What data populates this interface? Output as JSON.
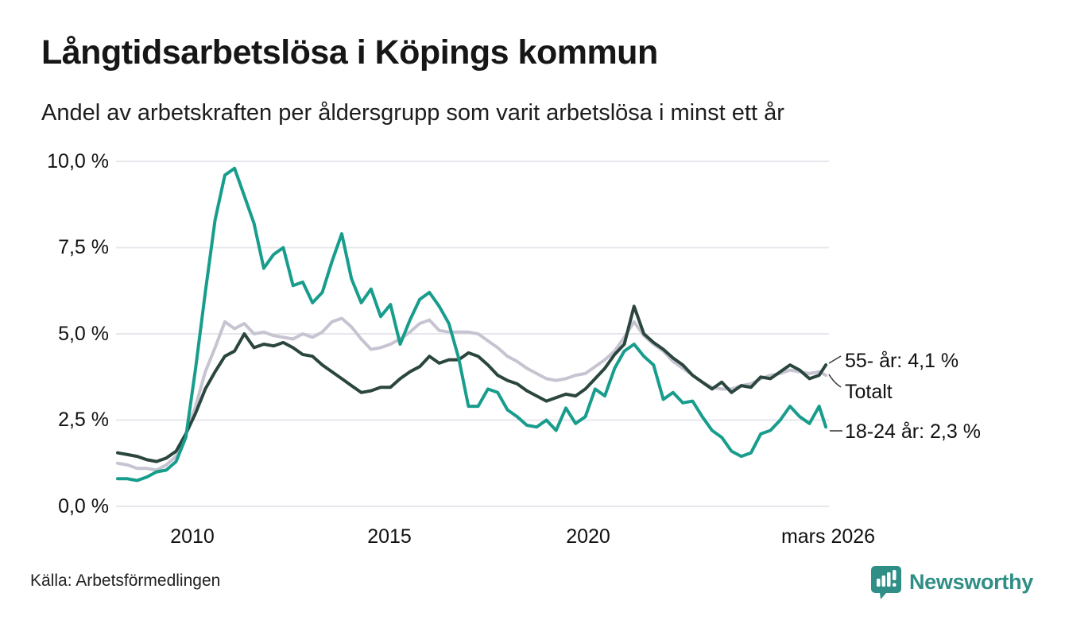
{
  "header": {
    "title": "Långtidsarbetslösa i Köpings kommun",
    "subtitle": "Andel av arbetskraften per åldersgrupp som varit arbetslösa i minst ett år"
  },
  "footer": {
    "source": "Källa: Arbetsförmedlingen",
    "logo_text": "Newsworthy",
    "brand_color": "#2f8e86"
  },
  "chart_data": {
    "type": "line",
    "title": "Långtidsarbetslösa i Köpings kommun",
    "subtitle": "Andel av arbetskraften per åldersgrupp som varit arbetslösa i minst ett år",
    "xlabel": "",
    "ylabel": "",
    "xlim": [
      2008,
      2026.25
    ],
    "ylim": [
      0,
      10
    ],
    "grid": "horizontal",
    "grid_color": "#e7e6ec",
    "legend_position": "right-end-labels",
    "yticks": [
      {
        "value": 10.0,
        "label": "10,0 %"
      },
      {
        "value": 7.5,
        "label": "7,5 %"
      },
      {
        "value": 5.0,
        "label": "5,0 %"
      },
      {
        "value": 2.5,
        "label": "2,5 %"
      },
      {
        "value": 0.0,
        "label": "0,0 %"
      }
    ],
    "xticks": [
      {
        "value": 2010,
        "label": "2010"
      },
      {
        "value": 2015,
        "label": "2015"
      },
      {
        "value": 2020,
        "label": "2020"
      },
      {
        "value": 2026.17,
        "label": "mars 2026"
      }
    ],
    "x": [
      2008.0,
      2008.25,
      2008.5,
      2008.75,
      2009.0,
      2009.25,
      2009.5,
      2009.75,
      2010.0,
      2010.25,
      2010.5,
      2010.75,
      2011.0,
      2011.25,
      2011.5,
      2011.75,
      2012.0,
      2012.25,
      2012.5,
      2012.75,
      2013.0,
      2013.25,
      2013.5,
      2013.75,
      2014.0,
      2014.25,
      2014.5,
      2014.75,
      2015.0,
      2015.25,
      2015.5,
      2015.75,
      2016.0,
      2016.25,
      2016.5,
      2016.75,
      2017.0,
      2017.25,
      2017.5,
      2017.75,
      2018.0,
      2018.25,
      2018.5,
      2018.75,
      2019.0,
      2019.25,
      2019.5,
      2019.75,
      2020.0,
      2020.25,
      2020.5,
      2020.75,
      2021.0,
      2021.25,
      2021.5,
      2021.75,
      2022.0,
      2022.25,
      2022.5,
      2022.75,
      2023.0,
      2023.25,
      2023.5,
      2023.75,
      2024.0,
      2024.25,
      2024.5,
      2024.75,
      2025.0,
      2025.25,
      2025.5,
      2025.75,
      2026.0,
      2026.17
    ],
    "series": [
      {
        "name": "Totalt",
        "color": "#c7c4d2",
        "end_label": "Totalt",
        "values": [
          1.25,
          1.2,
          1.1,
          1.1,
          1.05,
          1.2,
          1.45,
          2.1,
          2.9,
          3.9,
          4.6,
          5.35,
          5.15,
          5.3,
          5.0,
          5.05,
          4.95,
          4.9,
          4.85,
          5.0,
          4.9,
          5.05,
          5.35,
          5.45,
          5.2,
          4.85,
          4.55,
          4.6,
          4.7,
          4.85,
          5.05,
          5.3,
          5.4,
          5.1,
          5.05,
          5.05,
          5.05,
          5.0,
          4.8,
          4.6,
          4.35,
          4.2,
          4.0,
          3.85,
          3.7,
          3.65,
          3.7,
          3.8,
          3.85,
          4.05,
          4.25,
          4.5,
          4.9,
          5.35,
          4.95,
          4.7,
          4.5,
          4.2,
          4.0,
          3.8,
          3.6,
          3.45,
          3.4,
          3.4,
          3.5,
          3.55,
          3.7,
          3.8,
          3.85,
          3.95,
          3.9,
          3.85,
          3.9,
          3.8
        ]
      },
      {
        "name": "55- år",
        "color": "#2b463f",
        "end_label": "55- år: 4,1 %",
        "end_value": 4.1,
        "values": [
          1.55,
          1.5,
          1.45,
          1.35,
          1.3,
          1.4,
          1.6,
          2.1,
          2.7,
          3.4,
          3.9,
          4.35,
          4.5,
          5.0,
          4.6,
          4.7,
          4.65,
          4.75,
          4.6,
          4.4,
          4.35,
          4.1,
          3.9,
          3.7,
          3.5,
          3.3,
          3.35,
          3.45,
          3.45,
          3.7,
          3.9,
          4.05,
          4.35,
          4.15,
          4.25,
          4.25,
          4.45,
          4.35,
          4.1,
          3.8,
          3.65,
          3.55,
          3.35,
          3.2,
          3.05,
          3.15,
          3.25,
          3.2,
          3.4,
          3.7,
          4.0,
          4.4,
          4.7,
          5.8,
          5.0,
          4.75,
          4.55,
          4.3,
          4.1,
          3.8,
          3.6,
          3.4,
          3.6,
          3.3,
          3.5,
          3.45,
          3.75,
          3.7,
          3.9,
          4.1,
          3.95,
          3.7,
          3.8,
          4.1
        ]
      },
      {
        "name": "18-24 år",
        "color": "#189d8d",
        "end_label": "18-24 år: 2,3 %",
        "end_value": 2.3,
        "values": [
          0.8,
          0.8,
          0.75,
          0.85,
          1.0,
          1.05,
          1.3,
          2.0,
          4.0,
          6.2,
          8.3,
          9.6,
          9.8,
          9.0,
          8.2,
          6.9,
          7.3,
          7.5,
          6.4,
          6.5,
          5.9,
          6.2,
          7.1,
          7.9,
          6.6,
          5.9,
          6.3,
          5.5,
          5.85,
          4.7,
          5.4,
          6.0,
          6.2,
          5.8,
          5.3,
          4.3,
          2.9,
          2.9,
          3.4,
          3.3,
          2.8,
          2.6,
          2.35,
          2.3,
          2.5,
          2.2,
          2.85,
          2.4,
          2.6,
          3.4,
          3.2,
          4.0,
          4.5,
          4.7,
          4.35,
          4.1,
          3.1,
          3.3,
          3.0,
          3.05,
          2.6,
          2.2,
          2.0,
          1.6,
          1.45,
          1.55,
          2.1,
          2.2,
          2.5,
          2.9,
          2.6,
          2.4,
          2.9,
          2.3
        ]
      }
    ]
  }
}
